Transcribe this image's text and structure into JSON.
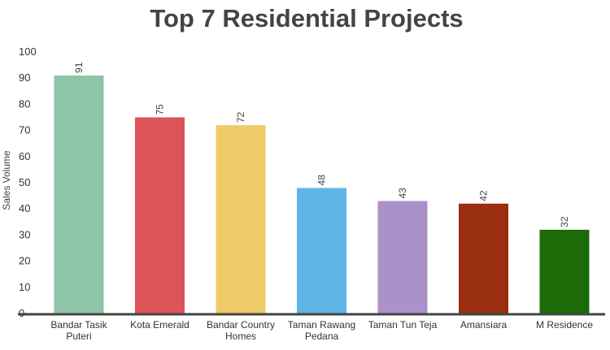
{
  "chart_data": {
    "type": "bar",
    "title": "Top 7 Residential Projects",
    "xlabel": "",
    "ylabel": "Sales Volume",
    "ylim": [
      0,
      100
    ],
    "yticks": [
      0,
      10,
      20,
      30,
      40,
      50,
      60,
      70,
      80,
      90,
      100
    ],
    "grid": false,
    "categories": [
      [
        "Bandar Tasik",
        "Puteri"
      ],
      [
        "Kota Emerald"
      ],
      [
        "Bandar Country",
        "Homes"
      ],
      [
        "Taman Rawang",
        "Pedana"
      ],
      [
        "Taman Tun Teja"
      ],
      [
        "Amansiara"
      ],
      [
        "M Residence"
      ]
    ],
    "values": [
      91,
      75,
      72,
      48,
      43,
      42,
      32
    ],
    "data_labels": [
      "91",
      "75",
      "72",
      "48",
      "43",
      "42",
      "32"
    ],
    "colors": [
      "#8ec4a8",
      "#dc5458",
      "#f0cb6a",
      "#5fb6e6",
      "#ab91c8",
      "#992e10",
      "#1d6a09"
    ]
  }
}
